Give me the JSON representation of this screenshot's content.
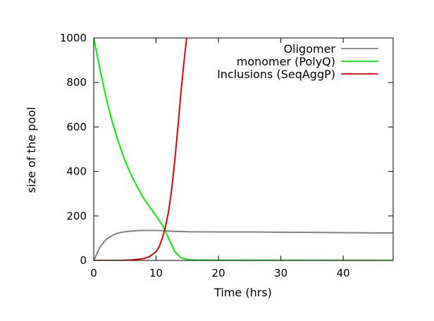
{
  "chart_data": {
    "type": "line",
    "title": "",
    "xlabel": "Time (hrs)",
    "ylabel": "size of the pool",
    "xlim": [
      0,
      48
    ],
    "ylim": [
      0,
      1000
    ],
    "x_ticks": [
      0,
      10,
      20,
      30,
      40
    ],
    "y_ticks": [
      0,
      200,
      400,
      600,
      800,
      1000
    ],
    "grid": false,
    "legend_position": "top-right",
    "series": [
      {
        "name": "Oligomer",
        "color": "#808080",
        "points": [
          [
            0,
            0
          ],
          [
            1,
            60
          ],
          [
            2,
            95
          ],
          [
            3,
            113
          ],
          [
            4,
            124
          ],
          [
            5,
            129
          ],
          [
            6,
            132
          ],
          [
            7,
            134
          ],
          [
            8,
            135
          ],
          [
            9,
            135
          ],
          [
            10,
            135
          ],
          [
            11,
            134
          ],
          [
            12,
            132
          ],
          [
            13,
            131
          ],
          [
            14,
            130
          ],
          [
            15,
            129
          ],
          [
            20,
            128
          ],
          [
            25,
            128
          ],
          [
            30,
            127
          ],
          [
            35,
            126
          ],
          [
            40,
            125
          ],
          [
            45,
            124
          ],
          [
            48,
            124
          ]
        ]
      },
      {
        "name": "monomer (PolyQ)",
        "color": "#00ee00",
        "points": [
          [
            0,
            1000
          ],
          [
            1,
            860
          ],
          [
            2,
            730
          ],
          [
            3,
            620
          ],
          [
            4,
            530
          ],
          [
            5,
            450
          ],
          [
            6,
            385
          ],
          [
            7,
            330
          ],
          [
            8,
            280
          ],
          [
            9,
            240
          ],
          [
            10,
            200
          ],
          [
            11,
            160
          ],
          [
            12,
            100
          ],
          [
            13,
            40
          ],
          [
            14,
            12
          ],
          [
            15,
            4
          ],
          [
            16,
            2
          ],
          [
            20,
            1
          ],
          [
            48,
            0
          ]
        ]
      },
      {
        "name": "Inclusions (SeqAggP)",
        "color": "#e00000",
        "points": [
          [
            0,
            0
          ],
          [
            4,
            0
          ],
          [
            6,
            2
          ],
          [
            8,
            8
          ],
          [
            9,
            18
          ],
          [
            10,
            40
          ],
          [
            10.5,
            62
          ],
          [
            11,
            100
          ],
          [
            11.5,
            150
          ],
          [
            12,
            220
          ],
          [
            12.5,
            320
          ],
          [
            13,
            450
          ],
          [
            13.5,
            600
          ],
          [
            14,
            760
          ],
          [
            14.5,
            900
          ],
          [
            14.9,
            1000
          ]
        ]
      }
    ]
  }
}
